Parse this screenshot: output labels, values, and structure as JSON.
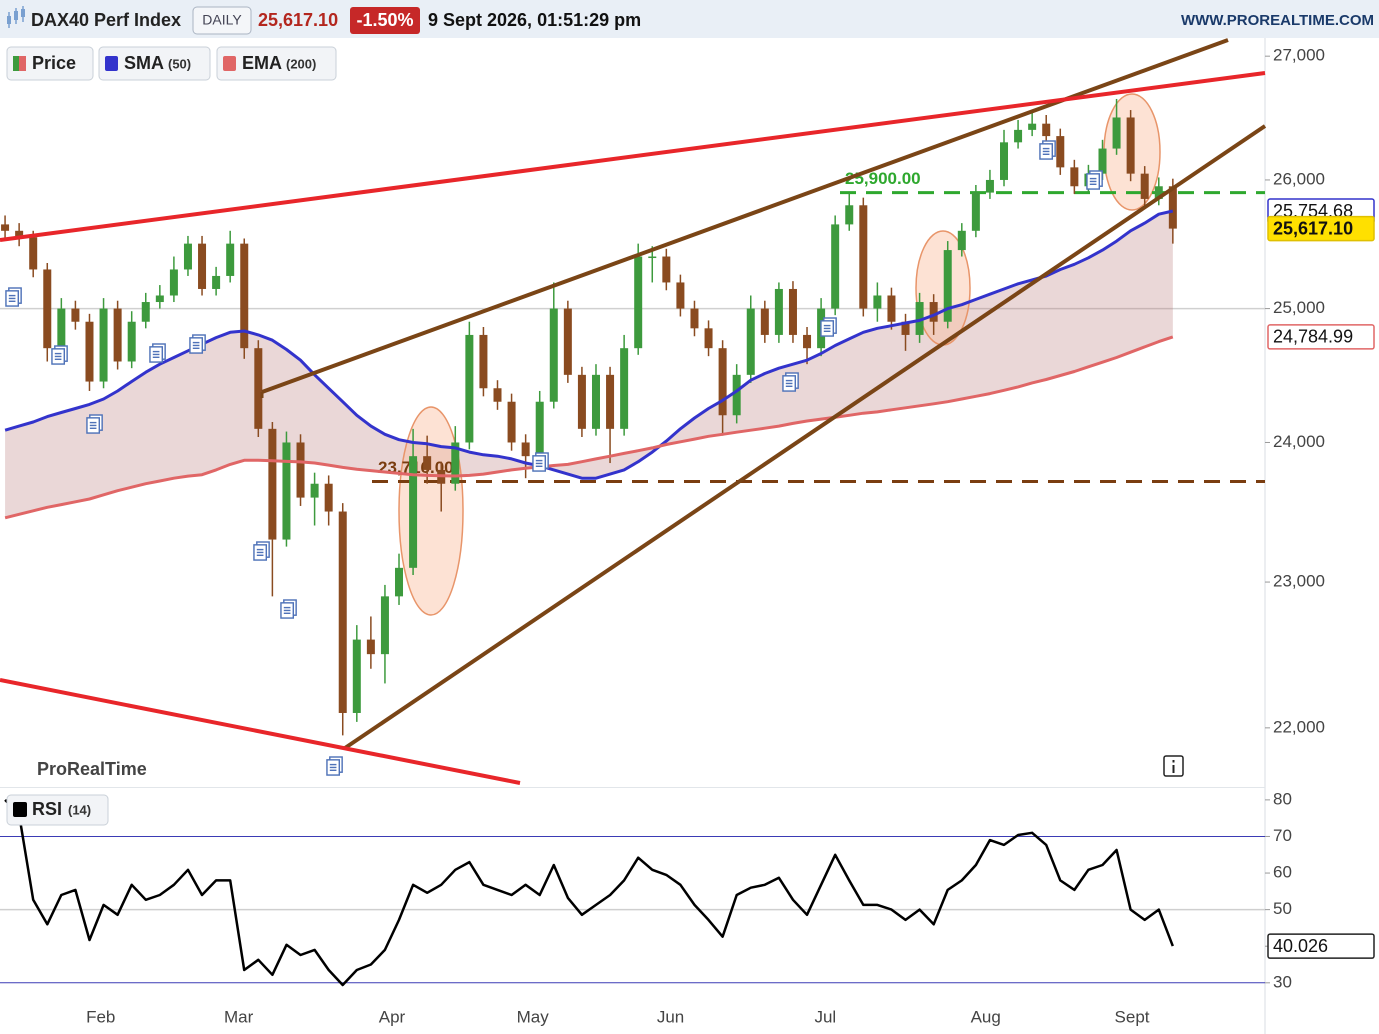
{
  "header": {
    "symbol": "DAX40 Perf Index",
    "interval": "DAILY",
    "price": "25,617.10",
    "change": "-1.50%",
    "datetime": "9 Sept 2026, 01:51:29 pm",
    "site": "WWW.PROREALTIME.COM"
  },
  "chart_data": [
    {
      "type": "candlestick",
      "name": "Price",
      "watermark": "ProRealTime",
      "log_scale": true,
      "up_color": "#3d9a3d",
      "down_color": "#8a4b20",
      "last_label": "25,617.10",
      "ylim": [
        21620,
        27150
      ],
      "yticks": [
        {
          "value": 22000,
          "label": "22,000"
        },
        {
          "value": 23000,
          "label": "23,000"
        },
        {
          "value": 24000,
          "label": "24,000"
        },
        {
          "value": 25000,
          "label": "25,000"
        },
        {
          "value": 26000,
          "label": "26,000"
        },
        {
          "value": 27000,
          "label": "27,000"
        }
      ],
      "xlim": [
        -0.36,
        89.55
      ],
      "reference_lines": [
        25000
      ],
      "levels": [
        {
          "value": 25900,
          "label": "25,900.00",
          "color": "#2ea82e"
        },
        {
          "value": 23716,
          "label": "23,716.00",
          "color": "#7a3d10"
        }
      ],
      "ohlc": [
        [
          25650,
          25720,
          25540,
          25600
        ],
        [
          25600,
          25660,
          25480,
          25550
        ],
        [
          25550,
          25600,
          25240,
          25300
        ],
        [
          25300,
          25350,
          24600,
          24700
        ],
        [
          24700,
          25080,
          24640,
          25000
        ],
        [
          25000,
          25060,
          24840,
          24900
        ],
        [
          24900,
          24960,
          24380,
          24450
        ],
        [
          24450,
          25080,
          24400,
          25000
        ],
        [
          25000,
          25060,
          24540,
          24600
        ],
        [
          24600,
          24980,
          24550,
          24900
        ],
        [
          24900,
          25120,
          24850,
          25050
        ],
        [
          25050,
          25180,
          25000,
          25100
        ],
        [
          25100,
          25400,
          25050,
          25300
        ],
        [
          25300,
          25560,
          25250,
          25500
        ],
        [
          25500,
          25560,
          25100,
          25150
        ],
        [
          25150,
          25320,
          25100,
          25250
        ],
        [
          25250,
          25600,
          25200,
          25500
        ],
        [
          25500,
          25540,
          24620,
          24700
        ],
        [
          24700,
          24760,
          24040,
          24100
        ],
        [
          24100,
          24150,
          22900,
          23300
        ],
        [
          23300,
          24080,
          23250,
          24000
        ],
        [
          24000,
          24060,
          23540,
          23600
        ],
        [
          23600,
          23780,
          23400,
          23700
        ],
        [
          23700,
          23760,
          23400,
          23500
        ],
        [
          23500,
          23560,
          21950,
          22100
        ],
        [
          22100,
          22700,
          22040,
          22600
        ],
        [
          22600,
          22760,
          22400,
          22500
        ],
        [
          22500,
          22980,
          22300,
          22900
        ],
        [
          22900,
          23200,
          22840,
          23100
        ],
        [
          23100,
          24100,
          23050,
          23900
        ],
        [
          23900,
          24050,
          23700,
          23800
        ],
        [
          23800,
          23860,
          23500,
          23700
        ],
        [
          23700,
          24120,
          23650,
          24000
        ],
        [
          24000,
          24900,
          23950,
          24800
        ],
        [
          24800,
          24860,
          24340,
          24400
        ],
        [
          24400,
          24460,
          24240,
          24300
        ],
        [
          24300,
          24360,
          23940,
          24000
        ],
        [
          24000,
          24060,
          23740,
          23900
        ],
        [
          23900,
          24380,
          23850,
          24300
        ],
        [
          24300,
          25200,
          24250,
          25000
        ],
        [
          25000,
          25060,
          24440,
          24500
        ],
        [
          24500,
          24560,
          24040,
          24100
        ],
        [
          24100,
          24580,
          24050,
          24500
        ],
        [
          24500,
          24560,
          23850,
          24100
        ],
        [
          24100,
          24800,
          24050,
          24700
        ],
        [
          24700,
          25500,
          24650,
          25400
        ],
        [
          25400,
          25480,
          25200,
          25400
        ],
        [
          25400,
          25460,
          25140,
          25200
        ],
        [
          25200,
          25260,
          24940,
          25000
        ],
        [
          25000,
          25060,
          24790,
          24850
        ],
        [
          24850,
          24910,
          24640,
          24700
        ],
        [
          24700,
          24760,
          24050,
          24200
        ],
        [
          24200,
          24580,
          24140,
          24500
        ],
        [
          24500,
          25100,
          24440,
          25000
        ],
        [
          25000,
          25060,
          24740,
          24800
        ],
        [
          24800,
          25200,
          24740,
          25150
        ],
        [
          25150,
          25210,
          24740,
          24800
        ],
        [
          24800,
          24860,
          24580,
          24700
        ],
        [
          24700,
          25080,
          24640,
          25000
        ],
        [
          25000,
          25720,
          24950,
          25650
        ],
        [
          25650,
          25900,
          25600,
          25800
        ],
        [
          25800,
          25860,
          24940,
          25000
        ],
        [
          25000,
          25200,
          24900,
          25100
        ],
        [
          25100,
          25160,
          24840,
          24900
        ],
        [
          24900,
          24960,
          24680,
          24800
        ],
        [
          24800,
          25120,
          24740,
          25050
        ],
        [
          25050,
          25110,
          24800,
          24900
        ],
        [
          24900,
          25520,
          24850,
          25450
        ],
        [
          25450,
          25660,
          25400,
          25600
        ],
        [
          25600,
          25960,
          25550,
          25900
        ],
        [
          25900,
          26080,
          25850,
          26000
        ],
        [
          26000,
          26400,
          25950,
          26300
        ],
        [
          26300,
          26480,
          26250,
          26400
        ],
        [
          26400,
          26560,
          26350,
          26450
        ],
        [
          26450,
          26520,
          26290,
          26350
        ],
        [
          26350,
          26410,
          26040,
          26100
        ],
        [
          26100,
          26160,
          25890,
          25950
        ],
        [
          25950,
          26120,
          25900,
          26050
        ],
        [
          26050,
          26320,
          26000,
          26250
        ],
        [
          26250,
          26650,
          26200,
          26500
        ],
        [
          26500,
          26560,
          25990,
          26050
        ],
        [
          26050,
          26110,
          25790,
          25850
        ],
        [
          25850,
          26020,
          25800,
          25950
        ],
        [
          25950,
          26010,
          25500,
          25617.1
        ]
      ],
      "series": [
        {
          "name": "SMA",
          "period_label": "(50)",
          "color": "#3333cc",
          "last_label": "25,754.68",
          "values": [
            24090,
            24120,
            24150,
            24190,
            24220,
            24250,
            24280,
            24320,
            24380,
            24450,
            24520,
            24580,
            24630,
            24680,
            24730,
            24780,
            24820,
            24830,
            24800,
            24760,
            24690,
            24610,
            24500,
            24400,
            24300,
            24200,
            24120,
            24060,
            24020,
            24000,
            23990,
            23970,
            23960,
            23930,
            23910,
            23900,
            23880,
            23850,
            23830,
            23800,
            23770,
            23740,
            23740,
            23770,
            23800,
            23860,
            23930,
            24010,
            24100,
            24180,
            24250,
            24310,
            24380,
            24460,
            24510,
            24550,
            24580,
            24610,
            24660,
            24720,
            24770,
            24820,
            24850,
            24870,
            24890,
            24910,
            24950,
            25000,
            25030,
            25070,
            25110,
            25150,
            25190,
            25220,
            25250,
            25300,
            25340,
            25390,
            25450,
            25520,
            25600,
            25660,
            25730,
            25754.68
          ]
        },
        {
          "name": "EMA",
          "period_label": "(200)",
          "color": "#e06666",
          "last_label": "24,784.99",
          "values": [
            23455,
            23480,
            23505,
            23530,
            23550,
            23570,
            23590,
            23620,
            23650,
            23675,
            23700,
            23720,
            23740,
            23755,
            23765,
            23800,
            23840,
            23870,
            23870,
            23866,
            23862,
            23858,
            23850,
            23835,
            23818,
            23805,
            23795,
            23785,
            23775,
            23765,
            23760,
            23758,
            23756,
            23760,
            23770,
            23785,
            23800,
            23812,
            23822,
            23832,
            23840,
            23860,
            23880,
            23900,
            23920,
            23940,
            23960,
            23985,
            24005,
            24025,
            24045,
            24060,
            24075,
            24090,
            24105,
            24120,
            24140,
            24158,
            24172,
            24185,
            24200,
            24215,
            24225,
            24240,
            24255,
            24270,
            24285,
            24300,
            24320,
            24340,
            24360,
            24385,
            24410,
            24440,
            24465,
            24495,
            24525,
            24560,
            24595,
            24630,
            24670,
            24710,
            24750,
            24784.99
          ]
        }
      ]
    },
    {
      "type": "line",
      "ylim": [
        25.3,
        82.7
      ],
      "yticks": [
        30,
        40,
        50,
        60,
        70,
        80
      ],
      "levels": [
        70,
        30
      ],
      "reference_lines": [
        50
      ],
      "xlim": [
        -0.36,
        89.55
      ],
      "xticks": [
        {
          "value": 6.8,
          "label": "Feb"
        },
        {
          "value": 16.6,
          "label": "Mar"
        },
        {
          "value": 27.5,
          "label": "Apr"
        },
        {
          "value": 37.5,
          "label": "May"
        },
        {
          "value": 47.3,
          "label": "Jun"
        },
        {
          "value": 58.3,
          "label": "Jul"
        },
        {
          "value": 69.7,
          "label": "Aug"
        },
        {
          "value": 80.1,
          "label": "Sept"
        }
      ],
      "series": [
        {
          "name": "RSI",
          "period_label": "(14)",
          "color": "#000000",
          "last_label": "40.026",
          "values": [
            80,
            76,
            52.7,
            46,
            54,
            55.4,
            41.7,
            51.3,
            48.6,
            56.8,
            52.7,
            54,
            56.8,
            60.9,
            54,
            58,
            58,
            33.5,
            36.3,
            32.2,
            40.4,
            37.6,
            39,
            33.5,
            29.4,
            33.5,
            35,
            39,
            47.2,
            56.8,
            54.6,
            56.8,
            60.9,
            63,
            56.8,
            55.4,
            54,
            56.8,
            54,
            62.2,
            53.2,
            48.6,
            51.3,
            54,
            58,
            64.2,
            60.9,
            59.5,
            56.8,
            51.3,
            47.2,
            42.6,
            54,
            56,
            56.8,
            58.7,
            52.7,
            48.6,
            56.8,
            65,
            58,
            51.3,
            51.3,
            50,
            47.2,
            50,
            46,
            55.4,
            58,
            62.2,
            69,
            67.7,
            70.4,
            71,
            67.7,
            58,
            55.4,
            60.9,
            62.2,
            66.3,
            50,
            47.2,
            50,
            40.026
          ]
        }
      ]
    }
  ]
}
